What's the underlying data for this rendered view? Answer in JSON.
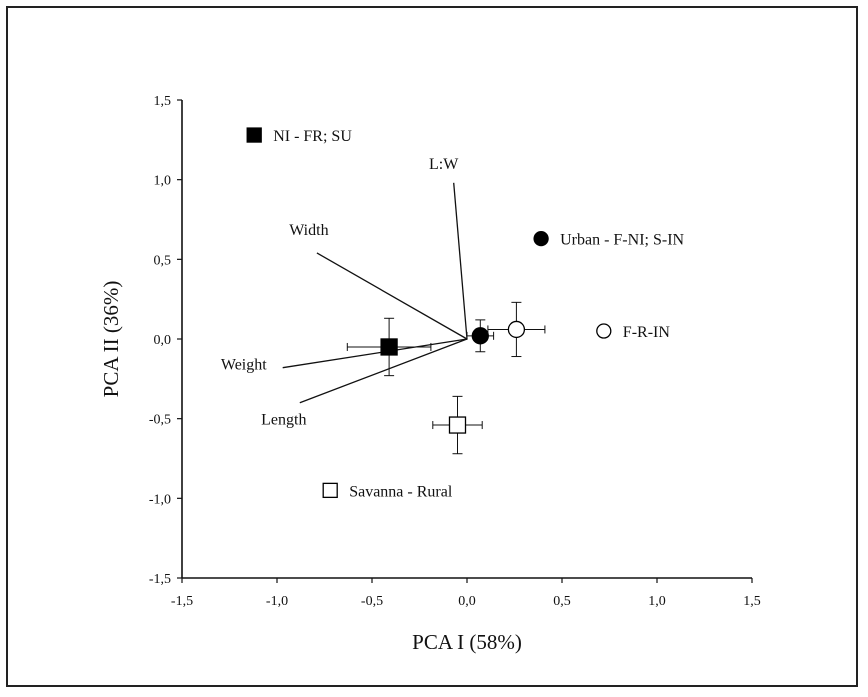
{
  "chart_data": {
    "type": "scatter",
    "xlabel": "PCA I (58%)",
    "ylabel": "PCA II (36%)",
    "xlim": [
      -1.5,
      1.5
    ],
    "ylim": [
      -1.5,
      1.5
    ],
    "xticks": [
      -1.5,
      -1.0,
      -0.5,
      0.0,
      0.5,
      1.0,
      1.5
    ],
    "xtick_labels": [
      "-1,5",
      "-1,0",
      "-0,5",
      "0,0",
      "0,5",
      "1,0",
      "1,5"
    ],
    "yticks": [
      1.5,
      1.0,
      0.5,
      0.0,
      -0.5,
      -1.0,
      -1.5
    ],
    "ytick_labels": [
      "1,5",
      "1,0",
      "0,5",
      "0,0",
      "-0,5",
      "-1,0",
      "-1,5"
    ],
    "grid": false,
    "legend": [
      {
        "label": "NI - FR; SU",
        "marker": "filled-square",
        "x": -1.12,
        "y": 1.28
      },
      {
        "label": "Urban - F-NI; S-IN",
        "marker": "filled-circle",
        "x": 0.39,
        "y": 0.63
      },
      {
        "label": "F-R-IN",
        "marker": "open-circle",
        "x": 0.72,
        "y": 0.05
      },
      {
        "label": "Savanna - Rural",
        "marker": "open-square",
        "x": -0.72,
        "y": -0.95
      }
    ],
    "points": [
      {
        "marker": "filled-square",
        "x": -0.41,
        "y": -0.05,
        "xerr": 0.22,
        "yerr": 0.18
      },
      {
        "marker": "filled-circle",
        "x": 0.07,
        "y": 0.02,
        "xerr": 0.07,
        "yerr": 0.1
      },
      {
        "marker": "open-circle",
        "x": 0.26,
        "y": 0.06,
        "xerr": 0.15,
        "yerr": 0.17
      },
      {
        "marker": "open-square",
        "x": -0.05,
        "y": -0.54,
        "xerr": 0.13,
        "yerr": 0.18
      }
    ],
    "vectors": [
      {
        "label": "L:W",
        "x": -0.07,
        "y": 0.98
      },
      {
        "label": "Width",
        "x": -0.79,
        "y": 0.54
      },
      {
        "label": "Weight",
        "x": -0.97,
        "y": -0.18
      },
      {
        "label": "Length",
        "x": -0.88,
        "y": -0.4
      }
    ]
  }
}
